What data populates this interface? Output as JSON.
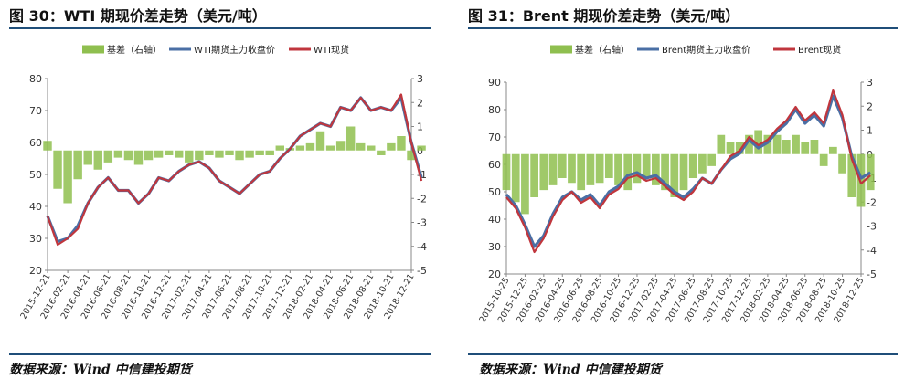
{
  "left_panel": {
    "title": "图 30：WTI 期现价差走势（美元/吨）",
    "source": "数据来源：Wind 中信建投期货"
  },
  "right_panel": {
    "title": "图 31：Brent 期现价差走势（美元/吨）",
    "source": "数据来源：Wind 中信建投期货"
  },
  "colors": {
    "basis": "#8fbf4f",
    "futures": "#4a6fa5",
    "spot": "#c0363d",
    "rule": "#1f4e79"
  },
  "chart_data": [
    {
      "type": "line",
      "title": "",
      "legend": [
        "基差（右轴）",
        "WTI期货主力收盘价",
        "WTI现货"
      ],
      "legend_position": "top",
      "ylim_left": [
        20,
        80
      ],
      "yticks_left": [
        20,
        30,
        40,
        50,
        60,
        70,
        80
      ],
      "ylim_right": [
        -5,
        3
      ],
      "yticks_right": [
        -5,
        -4,
        -3,
        -2,
        -1,
        0,
        1,
        2,
        3
      ],
      "xtick_labels": [
        "2015-12-21",
        "2016-02-21",
        "2016-04-21",
        "2016-06-21",
        "2016-08-21",
        "2016-10-21",
        "2016-12-21",
        "2017-02-21",
        "2017-04-21",
        "2017-06-21",
        "2017-08-21",
        "2017-10-21",
        "2017-12-21",
        "2018-02-21",
        "2018-04-21",
        "2018-06-21",
        "2018-08-21",
        "2018-10-21",
        "2018-12-21"
      ],
      "series": [
        {
          "name": "WTI期货主力收盘价",
          "axis": "left",
          "x": [
            0,
            0.5,
            1,
            1.5,
            2,
            2.5,
            3,
            3.5,
            4,
            4.5,
            5,
            5.5,
            6,
            6.5,
            7,
            7.5,
            8,
            8.5,
            9,
            9.5,
            10,
            10.5,
            11,
            11.5,
            12,
            12.5,
            13,
            13.5,
            14,
            14.5,
            15,
            15.5,
            16,
            16.5,
            17,
            17.5,
            18,
            18.5
          ],
          "y": [
            37,
            29,
            30,
            34,
            41,
            46,
            49,
            45,
            45,
            41,
            44,
            49,
            48,
            51,
            53,
            54,
            52,
            48,
            46,
            44,
            47,
            50,
            51,
            55,
            58,
            62,
            64,
            66,
            65,
            71,
            70,
            74,
            70,
            71,
            70,
            74,
            60,
            49
          ]
        },
        {
          "name": "WTI现货",
          "axis": "left",
          "x": [
            0,
            0.5,
            1,
            1.5,
            2,
            2.5,
            3,
            3.5,
            4,
            4.5,
            5,
            5.5,
            6,
            6.5,
            7,
            7.5,
            8,
            8.5,
            9,
            9.5,
            10,
            10.5,
            11,
            11.5,
            12,
            12.5,
            13,
            13.5,
            14,
            14.5,
            15,
            15.5,
            16,
            16.5,
            17,
            17.5,
            18,
            18.5
          ],
          "y": [
            37,
            28,
            30,
            33,
            41,
            46,
            49,
            45,
            45,
            41,
            44,
            49,
            48,
            51,
            53,
            54,
            52,
            48,
            46,
            44,
            47,
            50,
            51,
            55,
            58,
            62,
            64,
            66,
            65,
            71,
            70,
            74,
            70,
            71,
            70,
            75,
            60,
            48
          ]
        },
        {
          "name": "基差（右轴）",
          "type": "bar",
          "axis": "right",
          "x": [
            0,
            0.5,
            1,
            1.5,
            2,
            2.5,
            3,
            3.5,
            4,
            4.5,
            5,
            5.5,
            6,
            6.5,
            7,
            7.5,
            8,
            8.5,
            9,
            9.5,
            10,
            10.5,
            11,
            11.5,
            12,
            12.5,
            13,
            13.5,
            14,
            14.5,
            15,
            15.5,
            16,
            16.5,
            17,
            17.5,
            18,
            18.5
          ],
          "y": [
            0.4,
            -1.6,
            -2.2,
            -1.2,
            -0.6,
            -0.8,
            -0.5,
            -0.3,
            -0.4,
            -0.6,
            -0.4,
            -0.3,
            -0.2,
            -0.3,
            -0.5,
            -0.4,
            -0.2,
            -0.3,
            -0.2,
            -0.4,
            -0.3,
            -0.2,
            -0.2,
            0.2,
            0.1,
            0.2,
            0.3,
            0.8,
            0.2,
            0.4,
            1.0,
            0.3,
            0.2,
            -0.2,
            0.3,
            0.6,
            -0.4,
            0.2
          ]
        }
      ]
    },
    {
      "type": "line",
      "title": "",
      "legend": [
        "基差（右轴）",
        "Brent期货主力收盘价",
        "Brent现货"
      ],
      "legend_position": "top",
      "ylim_left": [
        20,
        90
      ],
      "yticks_left": [
        20,
        30,
        40,
        50,
        60,
        70,
        80,
        90
      ],
      "ylim_right": [
        -5,
        3
      ],
      "yticks_right": [
        -5,
        -4,
        -3,
        -2,
        -1,
        0,
        1,
        2,
        3
      ],
      "xtick_labels": [
        "2015-10-25",
        "2015-12-25",
        "2016-02-25",
        "2016-04-25",
        "2016-06-25",
        "2016-08-25",
        "2016-10-25",
        "2016-12-25",
        "2017-02-25",
        "2017-04-25",
        "2017-06-25",
        "2017-08-25",
        "2017-10-25",
        "2017-12-25",
        "2018-02-25",
        "2018-04-25",
        "2018-06-25",
        "2018-08-25",
        "2018-10-25",
        "2018-12-25"
      ],
      "series": [
        {
          "name": "Brent期货主力收盘价",
          "axis": "left",
          "x": [
            0,
            0.5,
            1,
            1.5,
            2,
            2.5,
            3,
            3.5,
            4,
            4.5,
            5,
            5.5,
            6,
            6.5,
            7,
            7.5,
            8,
            8.5,
            9,
            9.5,
            10,
            10.5,
            11,
            11.5,
            12,
            12.5,
            13,
            13.5,
            14,
            14.5,
            15,
            15.5,
            16,
            16.5,
            17,
            17.5,
            18,
            18.5,
            19,
            19.5
          ],
          "y": [
            49,
            45,
            38,
            30,
            34,
            42,
            48,
            50,
            47,
            49,
            45,
            50,
            52,
            56,
            57,
            55,
            56,
            53,
            50,
            48,
            51,
            55,
            53,
            58,
            62,
            64,
            69,
            66,
            68,
            72,
            75,
            80,
            75,
            78,
            74,
            85,
            77,
            63,
            55,
            57
          ]
        },
        {
          "name": "Brent现货",
          "axis": "left",
          "x": [
            0,
            0.5,
            1,
            1.5,
            2,
            2.5,
            3,
            3.5,
            4,
            4.5,
            5,
            5.5,
            6,
            6.5,
            7,
            7.5,
            8,
            8.5,
            9,
            9.5,
            10,
            10.5,
            11,
            11.5,
            12,
            12.5,
            13,
            13.5,
            14,
            14.5,
            15,
            15.5,
            16,
            16.5,
            17,
            17.5,
            18,
            18.5,
            19,
            19.5
          ],
          "y": [
            48,
            44,
            37,
            28,
            33,
            41,
            47,
            50,
            46,
            48,
            44,
            49,
            51,
            55,
            56,
            54,
            55,
            52,
            49,
            47,
            50,
            55,
            53,
            58,
            63,
            65,
            70,
            67,
            69,
            73,
            76,
            81,
            76,
            79,
            75,
            87,
            78,
            62,
            53,
            56
          ]
        },
        {
          "name": "基差（右轴）",
          "type": "bar",
          "axis": "right",
          "x": [
            0,
            0.5,
            1,
            1.5,
            2,
            2.5,
            3,
            3.5,
            4,
            4.5,
            5,
            5.5,
            6,
            6.5,
            7,
            7.5,
            8,
            8.5,
            9,
            9.5,
            10,
            10.5,
            11,
            11.5,
            12,
            12.5,
            13,
            13.5,
            14,
            14.5,
            15,
            15.5,
            16,
            16.5,
            17,
            17.5,
            18,
            18.5,
            19,
            19.5
          ],
          "y": [
            -1.5,
            -2.0,
            -2.5,
            -1.8,
            -1.5,
            -1.3,
            -1.0,
            -1.2,
            -1.5,
            -1.3,
            -1.2,
            -1.0,
            -1.3,
            -1.5,
            -1.2,
            -1.0,
            -1.3,
            -1.5,
            -1.8,
            -1.5,
            -1.0,
            -0.8,
            -0.5,
            0.8,
            0.5,
            0.5,
            0.8,
            1.0,
            0.8,
            0.8,
            0.6,
            0.8,
            0.5,
            0.6,
            -0.5,
            0.3,
            -0.8,
            -1.8,
            -2.2,
            -1.5
          ]
        }
      ]
    }
  ]
}
